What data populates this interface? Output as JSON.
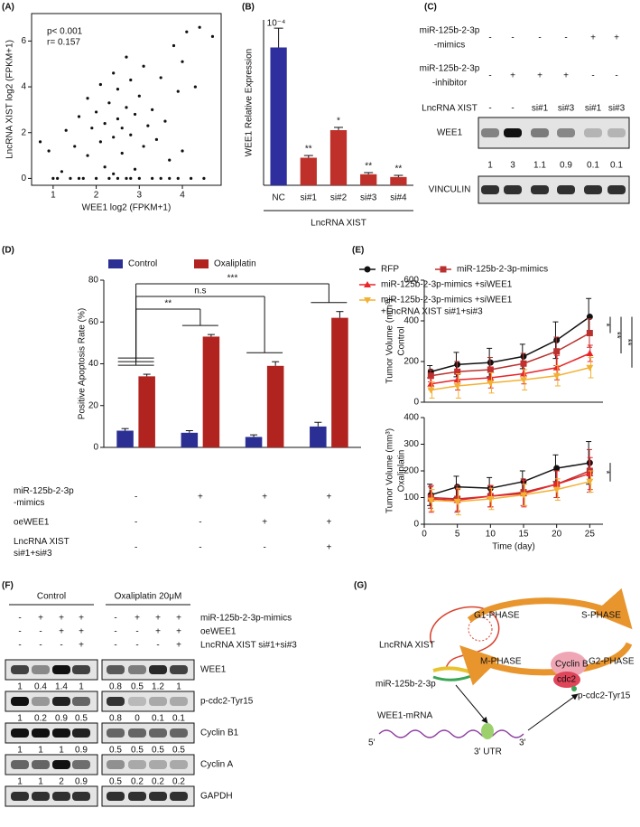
{
  "chart_data": [
    {
      "type": "scatter",
      "panel": "(A)",
      "x": [
        0.7,
        0.9,
        1.0,
        1.2,
        1.3,
        1.4,
        1.5,
        1.6,
        1.7,
        1.8,
        1.8,
        1.9,
        2.0,
        2.0,
        2.1,
        2.1,
        2.2,
        2.2,
        2.3,
        2.3,
        2.4,
        2.4,
        2.5,
        2.5,
        2.5,
        2.6,
        2.6,
        2.7,
        2.7,
        2.7,
        2.8,
        2.8,
        2.9,
        2.9,
        3.0,
        3.0,
        3.1,
        3.1,
        3.2,
        3.3,
        3.3,
        3.4,
        3.5,
        3.5,
        3.6,
        3.7,
        3.8,
        3.9,
        3.9,
        4.0,
        4.0,
        4.1,
        4.2,
        4.3,
        4.4,
        4.5,
        4.7,
        1.1,
        1.6,
        2.8,
        3.7,
        2.4
      ],
      "y": [
        1.6,
        1.2,
        0.0,
        0.3,
        2.1,
        0.0,
        1.4,
        2.7,
        0.0,
        3.5,
        1.0,
        2.2,
        0.0,
        2.9,
        1.6,
        4.1,
        0.5,
        2.4,
        3.3,
        0.0,
        1.8,
        4.6,
        2.6,
        0.0,
        3.9,
        1.1,
        2.2,
        5.3,
        0.0,
        3.1,
        1.9,
        4.3,
        0.4,
        2.8,
        3.6,
        0.0,
        1.4,
        4.9,
        2.3,
        0.0,
        3.0,
        1.7,
        4.4,
        0.0,
        2.5,
        0.8,
        5.8,
        3.8,
        0.0,
        1.2,
        5.1,
        6.4,
        0.0,
        4.0,
        6.6,
        0.0,
        6.2,
        0.0,
        0.0,
        0.0,
        0.0,
        0.2
      ],
      "color": "#111111",
      "xlim": [
        0.5,
        4.9
      ],
      "xticks": [
        1,
        2,
        3,
        4
      ],
      "ylim": [
        -0.3,
        7.2
      ],
      "yticks": [
        0,
        2,
        4,
        6
      ],
      "xlabel": "WEE1 log2 (FPKM+1)",
      "ylabel": "LncRNA XIST log2 (FPKM+1)",
      "annotations": [
        "p< 0.001",
        "r= 0.157"
      ]
    },
    {
      "type": "bar",
      "panel": "(B)",
      "categories": [
        "NC",
        "si#1",
        "si#2",
        "si#3",
        "si#4"
      ],
      "values": [
        2.5,
        0.5,
        1.0,
        0.2,
        0.15
      ],
      "errors": [
        0.35,
        0.04,
        0.05,
        0.03,
        0.03
      ],
      "colors": [
        "#2e2e9e",
        "#c0302a",
        "#c0302a",
        "#c0302a",
        "#c0302a"
      ],
      "significance": [
        null,
        "**",
        "*",
        "**",
        "**"
      ],
      "ylim": [
        0,
        3
      ],
      "axis_note": "10⁻⁴",
      "xlabel": "LncRNA XIST",
      "ylabel": "WEE1 Relative Expression"
    },
    {
      "type": "bar",
      "panel": "(D)",
      "series": [
        {
          "name": "Control",
          "color": "#2b2f94",
          "values": [
            8,
            7,
            5,
            10
          ],
          "errors": [
            1,
            1,
            1,
            2
          ]
        },
        {
          "name": "Oxaliplatin",
          "color": "#b0231f",
          "values": [
            34,
            53,
            39,
            62
          ],
          "errors": [
            1,
            1,
            2,
            3
          ]
        }
      ],
      "ylim": [
        0,
        80
      ],
      "yticks": [
        0,
        20,
        40,
        60,
        80
      ],
      "ylabel": "Positive Apoptosis Rate (%)",
      "significance": [
        "**",
        "n.s",
        "***"
      ],
      "conditions": [
        {
          "label": [
            "miR-125b-2-3p",
            "-mimics"
          ],
          "lanes": [
            "-",
            "+",
            "+",
            "+"
          ]
        },
        {
          "label": [
            "oeWEE1"
          ],
          "lanes": [
            "-",
            "-",
            "+",
            "+"
          ]
        },
        {
          "label": [
            "LncRNA  XIST",
            "si#1+si#3"
          ],
          "lanes": [
            "-",
            "-",
            "-",
            "+"
          ]
        }
      ]
    },
    {
      "type": "line",
      "panel": "(E)",
      "x": [
        1,
        5,
        10,
        15,
        20,
        25
      ],
      "xlim": [
        0,
        27
      ],
      "ylim": [
        0,
        600
      ],
      "yticks": [
        0,
        200,
        400,
        600
      ],
      "ylabel": [
        "Tumor Volume (mm³)",
        "Control"
      ],
      "series": [
        {
          "name": [
            "RFP"
          ],
          "color": "#111111",
          "marker": "circle",
          "values": [
            150,
            185,
            195,
            225,
            305,
            420
          ],
          "errors": [
            30,
            60,
            70,
            60,
            90,
            90
          ]
        },
        {
          "name": [
            "miR-125b-2-3p-mimics"
          ],
          "color": "#b8312f",
          "marker": "square",
          "values": [
            130,
            150,
            160,
            190,
            250,
            340
          ],
          "errors": [
            30,
            50,
            60,
            50,
            70,
            70
          ]
        },
        {
          "name": [
            "miR-125b-2-3p-mimics +siWEE1"
          ],
          "color": "#e8262a",
          "marker": "triangle-up",
          "values": [
            90,
            110,
            120,
            140,
            170,
            240
          ],
          "errors": [
            30,
            50,
            50,
            50,
            60,
            40
          ]
        },
        {
          "name": [
            "miR-125b-2-3p-mimics +siWEE1",
            "+LncRNA XIST si#1+si#3"
          ],
          "color": "#f2b134",
          "marker": "triangle-down",
          "values": [
            60,
            80,
            95,
            110,
            130,
            170
          ],
          "errors": [
            40,
            60,
            50,
            50,
            50,
            50
          ]
        }
      ],
      "significance": [
        "*",
        "**",
        "**"
      ]
    },
    {
      "type": "line",
      "x": [
        1,
        5,
        10,
        15,
        20,
        25
      ],
      "xlim": [
        0,
        27
      ],
      "xticks": [
        0,
        5,
        10,
        15,
        20,
        25
      ],
      "ylim": [
        0,
        400
      ],
      "yticks": [
        0,
        100,
        200,
        300,
        400
      ],
      "xlabel": "Time (day)",
      "ylabel": [
        "Tumor Volume (mm³)",
        "Oxaliplatin"
      ],
      "series": [
        {
          "color": "#111111",
          "marker": "circle",
          "values": [
            110,
            140,
            135,
            160,
            210,
            230
          ],
          "errors": [
            40,
            40,
            40,
            40,
            50,
            80
          ]
        },
        {
          "color": "#b8312f",
          "marker": "square",
          "values": [
            100,
            95,
            105,
            120,
            150,
            200
          ],
          "errors": [
            40,
            50,
            40,
            50,
            50,
            80
          ]
        },
        {
          "color": "#e8262a",
          "marker": "triangle-up",
          "values": [
            95,
            90,
            105,
            115,
            150,
            190
          ],
          "errors": [
            50,
            40,
            40,
            50,
            50,
            60
          ]
        },
        {
          "color": "#f2b134",
          "marker": "triangle-down",
          "values": [
            90,
            85,
            95,
            110,
            130,
            160
          ],
          "errors": [
            40,
            50,
            40,
            40,
            40,
            40
          ]
        }
      ],
      "significance": [
        "*"
      ]
    }
  ],
  "blot_c": {
    "panel": "(C)",
    "rows": [
      {
        "label": [
          "miR-125b-2-3p",
          "-mimics"
        ],
        "lanes": [
          "-",
          "-",
          "-",
          "-",
          "+",
          "+"
        ]
      },
      {
        "label": [
          "miR-125b-2-3p",
          "-inhibitor"
        ],
        "lanes": [
          "-",
          "+",
          "+",
          "+",
          "-",
          "-"
        ]
      },
      {
        "label": [
          "LncRNA XIST"
        ],
        "lanes": [
          "-",
          "-",
          "si#1",
          "si#3",
          "si#1",
          "si#3"
        ]
      }
    ],
    "blots": [
      {
        "name": "WEE1",
        "quant": [
          1,
          3,
          1.1,
          0.9,
          0.1,
          0.1
        ]
      },
      {
        "name": "VINCULIN"
      }
    ]
  },
  "blot_f": {
    "panel": "(F)",
    "groups": [
      "Control",
      "Oxaliplatin 20μM"
    ],
    "rows": [
      {
        "label": "miR-125b-2-3p-mimics",
        "lanes": [
          "-",
          "+",
          "+",
          "+",
          "-",
          "+",
          "+",
          "+"
        ]
      },
      {
        "label": "oeWEE1",
        "lanes": [
          "-",
          "-",
          "+",
          "+",
          "-",
          "-",
          "+",
          "+"
        ]
      },
      {
        "label": "LncRNA XIST si#1+si#3",
        "lanes": [
          "-",
          "-",
          "-",
          "+",
          "-",
          "-",
          "-",
          "+"
        ]
      }
    ],
    "blots": [
      {
        "name": "WEE1",
        "quant": [
          1,
          0.4,
          1.4,
          1,
          0.8,
          0.5,
          1.2,
          1
        ]
      },
      {
        "name": "p-cdc2-Tyr15",
        "quant": [
          1,
          0.2,
          0.9,
          0.5,
          0.8,
          0,
          0.1,
          0.1
        ]
      },
      {
        "name": "Cyclin B1",
        "quant": [
          1,
          1,
          1,
          0.9,
          0.5,
          0.5,
          0.5,
          0.5
        ]
      },
      {
        "name": "Cyclin A",
        "quant": [
          1,
          1,
          2,
          0.9,
          0.5,
          0.2,
          0.2,
          0.2
        ]
      },
      {
        "name": "GAPDH"
      }
    ]
  },
  "diagram_g": {
    "panel": "(G)",
    "lncrna": "LncRNA XIST",
    "mirna": "miR-125b-2-3p",
    "mrna": "WEE1-mRNA",
    "five_prime": "5'",
    "utr": "3' UTR",
    "three_prime": "3'",
    "g1": "G1-PHASE",
    "s": "S-PHASE",
    "m": "M-PHASE",
    "g2": "G2-PHASE",
    "cyclin": "Cyclin B",
    "cdc2": "cdc2",
    "phospho": "p-cdc2-Tyr15"
  }
}
